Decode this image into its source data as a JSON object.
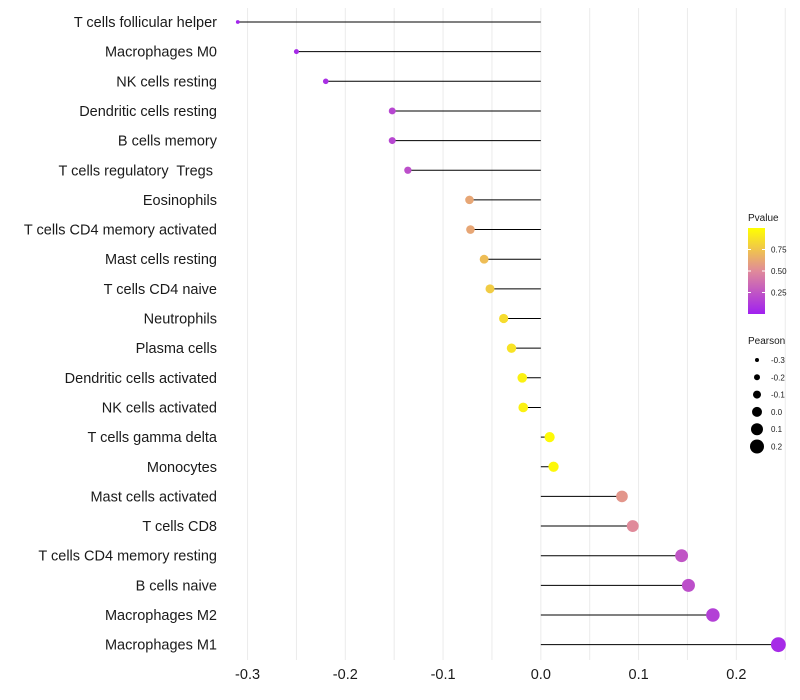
{
  "chart_data": {
    "type": "lollipop",
    "orientation": "horizontal",
    "xlim": [
      -0.32,
      0.26
    ],
    "x_ticks": [
      -0.3,
      -0.2,
      -0.1,
      0.0,
      0.1,
      0.2
    ],
    "x_tick_labels": [
      "-0.3",
      "-0.2",
      "-0.1",
      "0.0",
      "0.1",
      "0.2"
    ],
    "categories": [
      "T cells follicular helper",
      "Macrophages M0",
      "NK cells resting",
      "Dendritic cells resting",
      "B cells memory",
      "T cells regulatory  Tregs ",
      "Eosinophils",
      "T cells CD4 memory activated",
      "Mast cells resting",
      "T cells CD4 naive",
      "Neutrophils",
      "Plasma cells",
      "Dendritic cells activated",
      "NK cells activated",
      "T cells gamma delta",
      "Monocytes",
      "Mast cells activated",
      "T cells CD8",
      "T cells CD4 memory resting",
      "B cells naive",
      "Macrophages M2",
      "Macrophages M1"
    ],
    "pearson": [
      -0.31,
      -0.25,
      -0.22,
      -0.152,
      -0.152,
      -0.136,
      -0.073,
      -0.072,
      -0.058,
      -0.052,
      -0.038,
      -0.03,
      -0.019,
      -0.018,
      0.009,
      0.013,
      0.083,
      0.094,
      0.144,
      0.151,
      0.176,
      0.243
    ],
    "pvalue": [
      0.02,
      0.05,
      0.07,
      0.18,
      0.18,
      0.22,
      0.62,
      0.62,
      0.72,
      0.78,
      0.85,
      0.88,
      0.94,
      0.94,
      0.98,
      0.97,
      0.55,
      0.5,
      0.25,
      0.22,
      0.15,
      0.05
    ],
    "legend_pvalue": {
      "title": "Pvalue",
      "ticks": [
        0.25,
        0.5,
        0.75
      ],
      "tick_labels": [
        "0.25",
        "0.50",
        "0.75"
      ],
      "range": [
        0.0,
        1.0
      ],
      "color_low": "#a020f0",
      "color_mid": "#e08a9a",
      "color_high": "#ffff00"
    },
    "legend_pearson": {
      "title": "Pearson",
      "values": [
        -0.3,
        -0.2,
        -0.1,
        0.0,
        0.1,
        0.2
      ],
      "labels": [
        "-0.3",
        "-0.2",
        "-0.1",
        "0.0",
        "0.1",
        "0.2"
      ],
      "point_color": "#000000"
    }
  }
}
